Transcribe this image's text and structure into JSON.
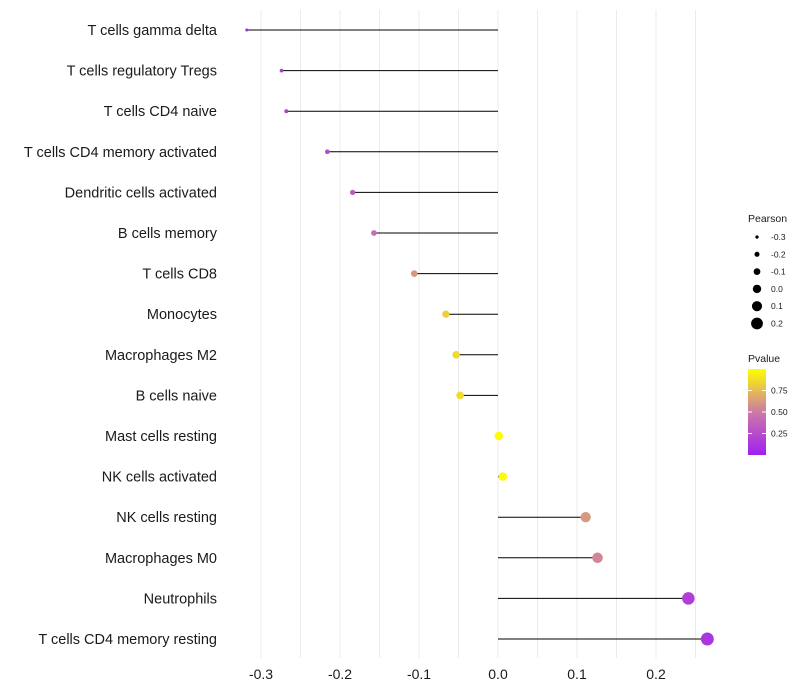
{
  "chart_data": {
    "type": "lollipop",
    "title": "",
    "xlabel": "",
    "ylabel": "",
    "xlim": [
      -0.33,
      0.28
    ],
    "xticks": [
      -0.3,
      -0.2,
      -0.1,
      0.0,
      0.1,
      0.2
    ],
    "xtick_labels": [
      "-0.3",
      "-0.2",
      "-0.1",
      "0.0",
      "0.1",
      "0.2"
    ],
    "grid": true,
    "categories": [
      "T cells gamma delta",
      "T cells regulatory  Tregs",
      "T cells CD4 naive",
      "T cells CD4 memory activated",
      "Dendritic cells activated",
      "B cells memory",
      "T cells CD8",
      "Monocytes",
      "Macrophages M2",
      "B cells naive",
      "Mast cells resting",
      "NK cells activated",
      "NK cells resting",
      "Macrophages M0",
      "Neutrophils",
      "T cells CD4 memory resting"
    ],
    "pearson": [
      -0.318,
      -0.274,
      -0.268,
      -0.216,
      -0.184,
      -0.157,
      -0.106,
      -0.066,
      -0.053,
      -0.048,
      0.001,
      0.006,
      0.111,
      0.126,
      0.241,
      0.265
    ],
    "pvalue": [
      0.05,
      0.15,
      0.17,
      0.25,
      0.33,
      0.42,
      0.61,
      0.82,
      0.86,
      0.87,
      0.99,
      0.99,
      0.62,
      0.55,
      0.18,
      0.12
    ],
    "legend_size": {
      "title": "Pearson",
      "labels": [
        "-0.3",
        "-0.2",
        "-0.1",
        "0.0",
        "0.1",
        "0.2"
      ],
      "values": [
        -0.3,
        -0.2,
        -0.1,
        0.0,
        0.1,
        0.2
      ]
    },
    "legend_color": {
      "title": "Pvalue",
      "labels": [
        "0.75",
        "0.50",
        "0.25"
      ],
      "values": [
        0.75,
        0.5,
        0.25
      ],
      "range": [
        0.0,
        1.0
      ],
      "colors": {
        "low": "#a020f0",
        "mid": "#cc7aa6",
        "high": "#ffff00"
      }
    }
  }
}
